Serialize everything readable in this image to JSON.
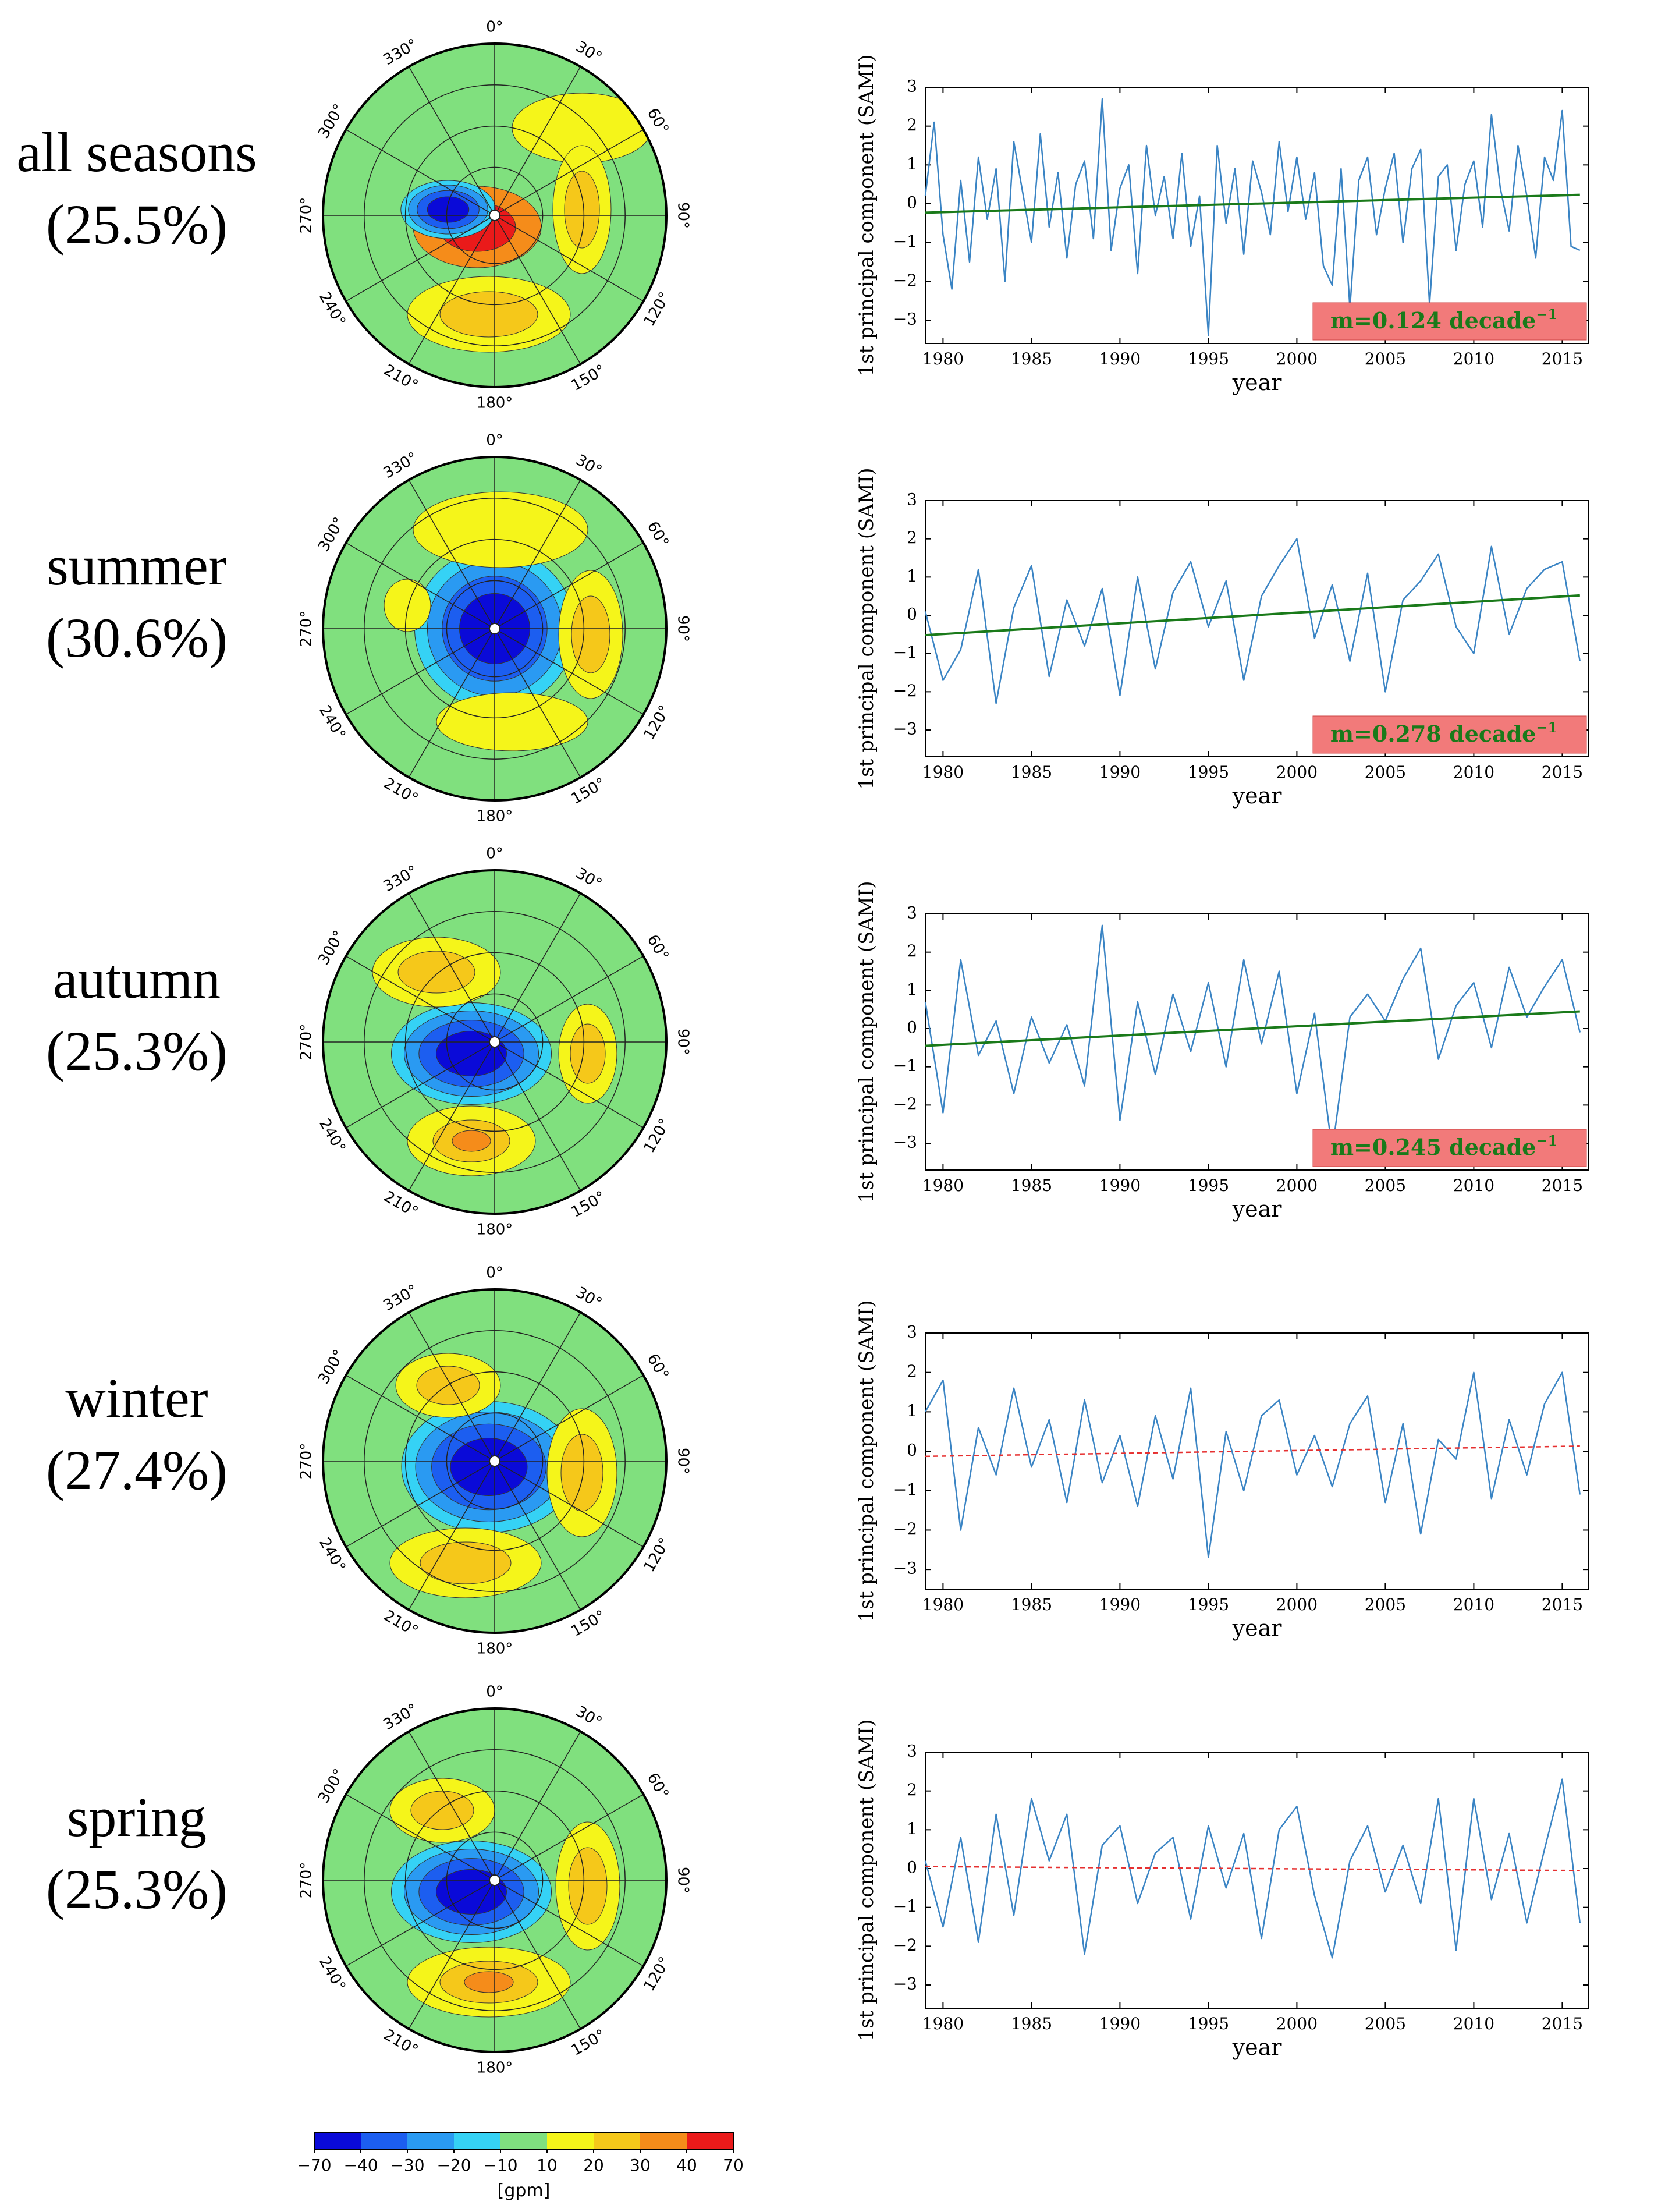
{
  "figure": {
    "colorbar": {
      "ticks": [
        "−70",
        "−40",
        "−30",
        "−20",
        "−10",
        "10",
        "20",
        "30",
        "40",
        "70"
      ],
      "colors": [
        "#0a0ad8",
        "#1c5ef0",
        "#2a9af2",
        "#35d2f5",
        "#7fe07f",
        "#f5f51a",
        "#f5c81a",
        "#f58c1a",
        "#ea1a1a"
      ],
      "unit": "[gpm]"
    },
    "map_style": {
      "background": "#80e07e",
      "longitude_labels": [
        "0°",
        "30°",
        "60°",
        "90°",
        "120°",
        "150°",
        "180°",
        "210°",
        "240°",
        "270°",
        "300°",
        "330°"
      ]
    }
  },
  "chart_data": [
    {
      "type": "line",
      "panel": "all seasons",
      "season_label": "all seasons",
      "variance": "(25.5%)",
      "xlabel": "year",
      "ylabel": "1st principal component (SAMI)",
      "xlim": [
        1979,
        2016.5
      ],
      "ylim": [
        -3.6,
        3.0
      ],
      "xticks": [
        1980,
        1985,
        1990,
        1995,
        2000,
        2005,
        2010,
        2015
      ],
      "yticks": [
        -3,
        -2,
        -1,
        0,
        1,
        2,
        3
      ],
      "series": [
        {
          "x": [
            1979.0,
            1979.5,
            1980.0,
            1980.5,
            1981.0,
            1981.5,
            1982.0,
            1982.5,
            1983.0,
            1983.5,
            1984.0,
            1984.5,
            1985.0,
            1985.5,
            1986.0,
            1986.5,
            1987.0,
            1987.5,
            1988.0,
            1988.5,
            1989.0,
            1989.5,
            1990.0,
            1990.5,
            1991.0,
            1991.5,
            1992.0,
            1992.5,
            1993.0,
            1993.5,
            1994.0,
            1994.5,
            1995.0,
            1995.5,
            1996.0,
            1996.5,
            1997.0,
            1997.5,
            1998.0,
            1998.5,
            1999.0,
            1999.5,
            2000.0,
            2000.5,
            2001.0,
            2001.5,
            2002.0,
            2002.5,
            2003.0,
            2003.5,
            2004.0,
            2004.5,
            2005.0,
            2005.5,
            2006.0,
            2006.5,
            2007.0,
            2007.5,
            2008.0,
            2008.5,
            2009.0,
            2009.5,
            2010.0,
            2010.5,
            2011.0,
            2011.5,
            2012.0,
            2012.5,
            2013.0,
            2013.5,
            2014.0,
            2014.5,
            2015.0,
            2015.5,
            2016.0
          ],
          "y": [
            0.2,
            2.1,
            -0.8,
            -2.2,
            0.6,
            -1.5,
            1.2,
            -0.4,
            0.9,
            -2.0,
            1.6,
            0.3,
            -1.0,
            1.8,
            -0.6,
            0.8,
            -1.4,
            0.5,
            1.1,
            -0.9,
            2.7,
            -1.2,
            0.4,
            1.0,
            -1.8,
            1.5,
            -0.3,
            0.7,
            -0.9,
            1.3,
            -1.1,
            0.2,
            -3.4,
            1.5,
            -0.5,
            0.9,
            -1.3,
            1.1,
            0.3,
            -0.8,
            1.6,
            -0.2,
            1.2,
            -0.4,
            0.8,
            -1.6,
            -2.1,
            0.9,
            -2.7,
            0.6,
            1.2,
            -0.8,
            0.4,
            1.3,
            -1.0,
            0.9,
            1.4,
            -2.6,
            0.7,
            1.0,
            -1.2,
            0.5,
            1.1,
            -0.6,
            2.3,
            0.4,
            -0.7,
            1.5,
            0.2,
            -1.4,
            1.2,
            0.6,
            2.4,
            -1.1,
            -1.2
          ]
        }
      ],
      "trend": {
        "x": [
          1979,
          2016
        ],
        "y": [
          -0.23,
          0.23
        ],
        "color": "#1a7a1a",
        "style": "solid"
      },
      "annotation": "m=0.124 decade",
      "annotation_exp": "−1"
    },
    {
      "type": "line",
      "panel": "summer",
      "season_label": "summer",
      "variance": "(30.6%)",
      "xlabel": "year",
      "ylabel": "1st principal component (SAMI)",
      "xlim": [
        1979,
        2016.5
      ],
      "ylim": [
        -3.7,
        3.0
      ],
      "xticks": [
        1980,
        1985,
        1990,
        1995,
        2000,
        2005,
        2010,
        2015
      ],
      "yticks": [
        -3,
        -2,
        -1,
        0,
        1,
        2,
        3
      ],
      "series": [
        {
          "x": [
            1979.0,
            1980.0,
            1981.0,
            1982.0,
            1983.0,
            1984.0,
            1985.0,
            1986.0,
            1987.0,
            1988.0,
            1989.0,
            1990.0,
            1991.0,
            1992.0,
            1993.0,
            1994.0,
            1995.0,
            1996.0,
            1997.0,
            1998.0,
            1999.0,
            2000.0,
            2001.0,
            2002.0,
            2003.0,
            2004.0,
            2005.0,
            2006.0,
            2007.0,
            2008.0,
            2009.0,
            2010.0,
            2011.0,
            2012.0,
            2013.0,
            2014.0,
            2015.0,
            2016.0
          ],
          "y": [
            0.1,
            -1.7,
            -0.9,
            1.2,
            -2.3,
            0.2,
            1.3,
            -1.6,
            0.4,
            -0.8,
            0.7,
            -2.1,
            1.0,
            -1.4,
            0.6,
            1.4,
            -0.3,
            0.9,
            -1.7,
            0.5,
            1.3,
            2.0,
            -0.6,
            0.8,
            -1.2,
            1.1,
            -2.0,
            0.4,
            0.9,
            1.6,
            -0.3,
            -1.0,
            1.8,
            -0.5,
            0.7,
            1.2,
            1.4,
            -1.2
          ],
          "mode": "smooth"
        }
      ],
      "trend": {
        "x": [
          1979,
          2016
        ],
        "y": [
          -0.52,
          0.52
        ],
        "color": "#1a7a1a",
        "style": "solid"
      },
      "annotation": "m=0.278 decade",
      "annotation_exp": "−1"
    },
    {
      "type": "line",
      "panel": "autumn",
      "season_label": "autumn",
      "variance": "(25.3%)",
      "xlabel": "year",
      "ylabel": "1st principal component (SAMI)",
      "xlim": [
        1979,
        2016.5
      ],
      "ylim": [
        -3.7,
        3.0
      ],
      "xticks": [
        1980,
        1985,
        1990,
        1995,
        2000,
        2005,
        2010,
        2015
      ],
      "yticks": [
        -3,
        -2,
        -1,
        0,
        1,
        2,
        3
      ],
      "series": [
        {
          "x": [
            1979.0,
            1980.0,
            1981.0,
            1982.0,
            1983.0,
            1984.0,
            1985.0,
            1986.0,
            1987.0,
            1988.0,
            1989.0,
            1990.0,
            1991.0,
            1992.0,
            1993.0,
            1994.0,
            1995.0,
            1996.0,
            1997.0,
            1998.0,
            1999.0,
            2000.0,
            2001.0,
            2002.0,
            2003.0,
            2004.0,
            2005.0,
            2006.0,
            2007.0,
            2008.0,
            2009.0,
            2010.0,
            2011.0,
            2012.0,
            2013.0,
            2014.0,
            2015.0,
            2016.0
          ],
          "y": [
            0.7,
            -2.2,
            1.8,
            -0.7,
            0.2,
            -1.7,
            0.3,
            -0.9,
            0.1,
            -1.5,
            2.7,
            -2.4,
            0.7,
            -1.2,
            0.9,
            -0.6,
            1.2,
            -1.0,
            1.8,
            -0.4,
            1.5,
            -1.7,
            0.4,
            -3.2,
            0.3,
            0.9,
            0.2,
            1.3,
            2.1,
            -0.8,
            0.6,
            1.2,
            -0.5,
            1.6,
            0.3,
            1.1,
            1.8,
            -0.1
          ],
          "mode": "smooth"
        }
      ],
      "trend": {
        "x": [
          1979,
          2016
        ],
        "y": [
          -0.45,
          0.45
        ],
        "color": "#1a7a1a",
        "style": "solid"
      },
      "annotation": "m=0.245 decade",
      "annotation_exp": "−1"
    },
    {
      "type": "line",
      "panel": "winter",
      "season_label": "winter",
      "variance": "(27.4%)",
      "xlabel": "year",
      "ylabel": "1st principal component (SAMI)",
      "xlim": [
        1979,
        2016.5
      ],
      "ylim": [
        -3.5,
        3.0
      ],
      "xticks": [
        1980,
        1985,
        1990,
        1995,
        2000,
        2005,
        2010,
        2015
      ],
      "yticks": [
        -3,
        -2,
        -1,
        0,
        1,
        2,
        3
      ],
      "series": [
        {
          "x": [
            1979.0,
            1980.0,
            1981.0,
            1982.0,
            1983.0,
            1984.0,
            1985.0,
            1986.0,
            1987.0,
            1988.0,
            1989.0,
            1990.0,
            1991.0,
            1992.0,
            1993.0,
            1994.0,
            1995.0,
            1996.0,
            1997.0,
            1998.0,
            1999.0,
            2000.0,
            2001.0,
            2002.0,
            2003.0,
            2004.0,
            2005.0,
            2006.0,
            2007.0,
            2008.0,
            2009.0,
            2010.0,
            2011.0,
            2012.0,
            2013.0,
            2014.0,
            2015.0,
            2016.0
          ],
          "y": [
            1.0,
            1.8,
            -2.0,
            0.6,
            -0.6,
            1.6,
            -0.4,
            0.8,
            -1.3,
            1.3,
            -0.8,
            0.4,
            -1.4,
            0.9,
            -0.7,
            1.6,
            -2.7,
            0.5,
            -1.0,
            0.9,
            1.3,
            -0.6,
            0.4,
            -0.9,
            0.7,
            1.4,
            -1.3,
            0.7,
            -2.1,
            0.3,
            -0.2,
            2.0,
            -1.2,
            0.8,
            -0.6,
            1.2,
            2.0,
            -1.1
          ],
          "mode": "smooth"
        }
      ],
      "trend": {
        "x": [
          1979,
          2016
        ],
        "y": [
          -0.13,
          0.13
        ],
        "color": "#e63030",
        "style": "dashed"
      }
    },
    {
      "type": "line",
      "panel": "spring",
      "season_label": "spring",
      "variance": "(25.3%)",
      "xlabel": "year",
      "ylabel": "1st principal component (SAMI)",
      "xlim": [
        1979,
        2016.5
      ],
      "ylim": [
        -3.6,
        3.0
      ],
      "xticks": [
        1980,
        1985,
        1990,
        1995,
        2000,
        2005,
        2010,
        2015
      ],
      "yticks": [
        -3,
        -2,
        -1,
        0,
        1,
        2,
        3
      ],
      "series": [
        {
          "x": [
            1979.0,
            1980.0,
            1981.0,
            1982.0,
            1983.0,
            1984.0,
            1985.0,
            1986.0,
            1987.0,
            1988.0,
            1989.0,
            1990.0,
            1991.0,
            1992.0,
            1993.0,
            1994.0,
            1995.0,
            1996.0,
            1997.0,
            1998.0,
            1999.0,
            2000.0,
            2001.0,
            2002.0,
            2003.0,
            2004.0,
            2005.0,
            2006.0,
            2007.0,
            2008.0,
            2009.0,
            2010.0,
            2011.0,
            2012.0,
            2013.0,
            2014.0,
            2015.0,
            2016.0
          ],
          "y": [
            0.2,
            -1.5,
            0.8,
            -1.9,
            1.4,
            -1.2,
            1.8,
            0.2,
            1.4,
            -2.2,
            0.6,
            1.1,
            -0.9,
            0.4,
            0.8,
            -1.3,
            1.1,
            -0.5,
            0.9,
            -1.8,
            1.0,
            1.6,
            -0.7,
            -2.3,
            0.2,
            1.1,
            -0.6,
            0.6,
            -0.9,
            1.8,
            -2.1,
            1.8,
            -0.8,
            0.9,
            -1.4,
            0.5,
            2.3,
            -1.4
          ],
          "mode": "smooth"
        }
      ],
      "trend": {
        "x": [
          1979,
          2016
        ],
        "y": [
          0.05,
          -0.05
        ],
        "color": "#e63030",
        "style": "dashed"
      }
    }
  ]
}
